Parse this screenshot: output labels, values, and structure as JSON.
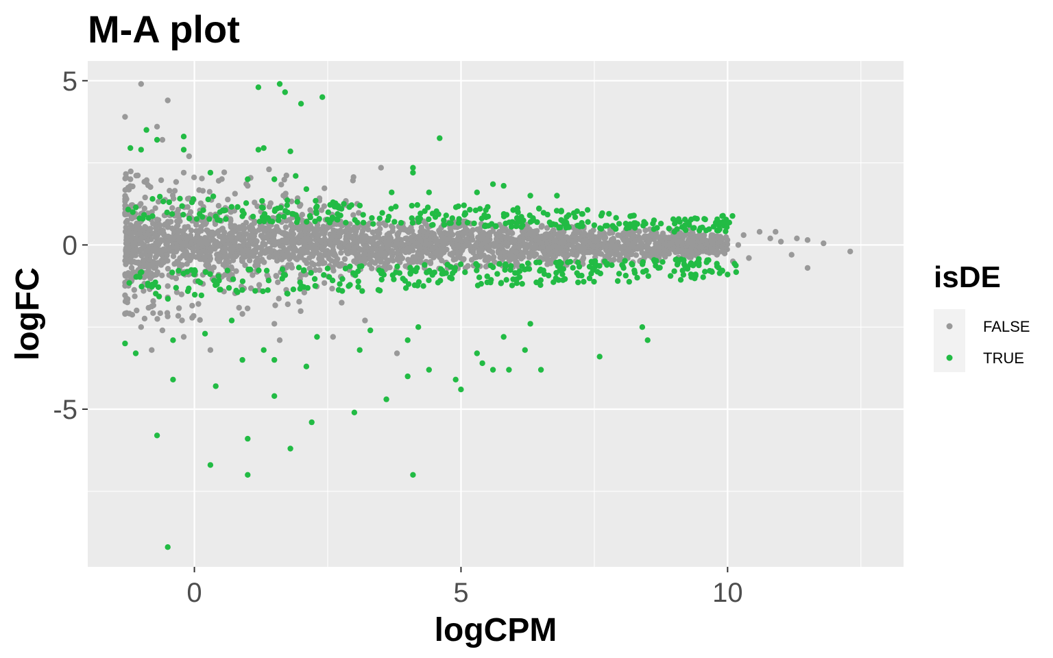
{
  "chart_data": {
    "type": "scatter",
    "title": "M-A plot",
    "xlabel": "logCPM",
    "ylabel": "logFC",
    "xlim": [
      -2.0,
      13.3
    ],
    "ylim": [
      -9.8,
      5.6
    ],
    "x_ticks": [
      0,
      5,
      10
    ],
    "x_tick_labels": [
      "0",
      "5",
      "10"
    ],
    "y_ticks": [
      -5,
      0,
      5
    ],
    "y_tick_labels": [
      "-5",
      "0",
      "5"
    ],
    "grid": true,
    "legend": {
      "title": "isDE",
      "position": "right",
      "entries": [
        {
          "label": "FALSE",
          "color": "#999999"
        },
        {
          "label": "TRUE",
          "color": "#22bb44"
        }
      ]
    },
    "series": [
      {
        "name": "FALSE",
        "color": "#999999",
        "points": [
          [
            -1.0,
            4.9
          ],
          [
            -0.5,
            4.4
          ],
          [
            -1.3,
            3.9
          ],
          [
            -0.7,
            3.6
          ],
          [
            -0.6,
            3.2
          ],
          [
            -0.1,
            2.7
          ],
          [
            3.5,
            2.35
          ],
          [
            -0.2,
            2.2
          ],
          [
            -1.2,
            2.0
          ],
          [
            -0.9,
            1.9
          ],
          [
            1.4,
            2.3
          ],
          [
            1.0,
            1.8
          ],
          [
            10.6,
            0.4
          ],
          [
            10.9,
            0.4
          ],
          [
            11.3,
            0.2
          ],
          [
            11.5,
            0.15
          ],
          [
            12.3,
            -0.2
          ],
          [
            11.0,
            0.1
          ],
          [
            10.8,
            0.2
          ],
          [
            11.8,
            0.05
          ],
          [
            11.2,
            -0.3
          ],
          [
            11.5,
            -0.7
          ],
          [
            10.4,
            -0.4
          ],
          [
            9.7,
            0.3
          ],
          [
            -1.3,
            -2.1
          ],
          [
            -1.0,
            -2.5
          ],
          [
            -0.2,
            -2.8
          ],
          [
            -0.8,
            -3.2
          ],
          [
            3.8,
            -3.3
          ],
          [
            2.6,
            -2.8
          ],
          [
            1.5,
            -2.4
          ],
          [
            0.9,
            -2.1
          ],
          [
            0.3,
            -3.2
          ],
          [
            -0.6,
            -2.6
          ],
          [
            1.6,
            -2.9
          ],
          [
            3.2,
            -2.3
          ],
          [
            9.3,
            0.5
          ],
          [
            9.8,
            -0.3
          ],
          [
            10.2,
            0.0
          ],
          [
            10.1,
            -0.5
          ],
          [
            9.9,
            0.6
          ],
          [
            10.3,
            0.3
          ]
        ]
      },
      {
        "name": "TRUE",
        "color": "#22bb44",
        "points": [
          [
            1.2,
            4.8
          ],
          [
            1.6,
            4.9
          ],
          [
            1.7,
            4.65
          ],
          [
            2.0,
            4.3
          ],
          [
            2.4,
            4.5
          ],
          [
            4.6,
            3.25
          ],
          [
            -0.9,
            3.5
          ],
          [
            -0.7,
            3.2
          ],
          [
            -0.2,
            3.3
          ],
          [
            -1.2,
            2.95
          ],
          [
            -0.2,
            2.9
          ],
          [
            1.2,
            2.9
          ],
          [
            1.3,
            2.95
          ],
          [
            1.8,
            2.85
          ],
          [
            -1.0,
            2.9
          ],
          [
            4.1,
            2.35
          ],
          [
            4.1,
            2.2
          ],
          [
            0.3,
            2.2
          ],
          [
            1.0,
            2.0
          ],
          [
            1.5,
            2.0
          ],
          [
            1.9,
            2.1
          ],
          [
            5.6,
            1.85
          ],
          [
            5.8,
            1.8
          ],
          [
            6.8,
            1.5
          ],
          [
            2.1,
            1.7
          ],
          [
            3.7,
            1.6
          ],
          [
            4.4,
            1.6
          ],
          [
            5.3,
            1.6
          ],
          [
            6.3,
            1.5
          ],
          [
            2.6,
            1.3
          ],
          [
            -0.7,
            -5.8
          ],
          [
            -0.5,
            -9.2
          ],
          [
            0.3,
            -6.7
          ],
          [
            1.0,
            -5.9
          ],
          [
            1.0,
            -7.0
          ],
          [
            1.8,
            -6.2
          ],
          [
            2.2,
            -5.4
          ],
          [
            3.0,
            -5.1
          ],
          [
            4.1,
            -7.0
          ],
          [
            0.4,
            -4.3
          ],
          [
            1.5,
            -4.6
          ],
          [
            3.6,
            -4.7
          ],
          [
            -0.4,
            -4.1
          ],
          [
            4.0,
            -4.0
          ],
          [
            4.9,
            -4.1
          ],
          [
            5.0,
            -4.4
          ],
          [
            4.4,
            -3.8
          ],
          [
            5.6,
            -3.8
          ],
          [
            5.9,
            -3.8
          ],
          [
            6.2,
            -3.2
          ],
          [
            6.5,
            -3.8
          ],
          [
            7.6,
            -3.4
          ],
          [
            8.4,
            -2.5
          ],
          [
            8.5,
            -2.9
          ],
          [
            1.5,
            -3.5
          ],
          [
            0.9,
            -3.5
          ],
          [
            2.1,
            -3.7
          ],
          [
            3.1,
            -3.2
          ],
          [
            5.3,
            -3.3
          ],
          [
            5.4,
            -3.6
          ],
          [
            -1.3,
            -3.0
          ],
          [
            -1.1,
            -3.3
          ],
          [
            -0.4,
            -2.9
          ],
          [
            0.2,
            -2.7
          ],
          [
            0.7,
            -2.3
          ],
          [
            1.3,
            -3.2
          ],
          [
            3.3,
            -2.6
          ],
          [
            4.2,
            -2.5
          ],
          [
            4.0,
            -2.9
          ],
          [
            5.8,
            -2.8
          ],
          [
            6.3,
            -2.4
          ],
          [
            2.3,
            -2.8
          ],
          [
            9.0,
            -0.8
          ],
          [
            9.4,
            -0.9
          ],
          [
            9.7,
            -0.8
          ],
          [
            10.0,
            -0.9
          ],
          [
            9.3,
            -0.6
          ],
          [
            8.7,
            -0.7
          ],
          [
            9.2,
            0.6
          ],
          [
            8.9,
            0.5
          ],
          [
            8.6,
            0.65
          ],
          [
            7.9,
            0.5
          ],
          [
            7.5,
            0.6
          ],
          [
            9.0,
            0.4
          ]
        ]
      }
    ],
    "density_band": {
      "series": "FALSE",
      "x": [
        -1.3,
        0,
        2,
        4,
        6,
        8,
        9,
        9.5,
        10.0
      ],
      "y_upper": [
        0.95,
        0.9,
        0.85,
        0.75,
        0.7,
        0.55,
        0.45,
        0.35,
        0.25
      ],
      "y_lower": [
        -0.95,
        -0.9,
        -0.85,
        -0.75,
        -0.7,
        -0.55,
        -0.45,
        -0.35,
        -0.25
      ]
    },
    "green_fringe": {
      "series": "TRUE",
      "x_range": [
        -1.3,
        10.2
      ],
      "bands": [
        {
          "side": "upper",
          "y_inner": [
            0.8,
            0.4
          ],
          "y_outer": [
            1.6,
            0.9
          ]
        },
        {
          "side": "lower",
          "y_inner": [
            -0.8,
            -0.4
          ],
          "y_outer": [
            -1.7,
            -1.0
          ]
        }
      ],
      "note_count": 600
    }
  }
}
